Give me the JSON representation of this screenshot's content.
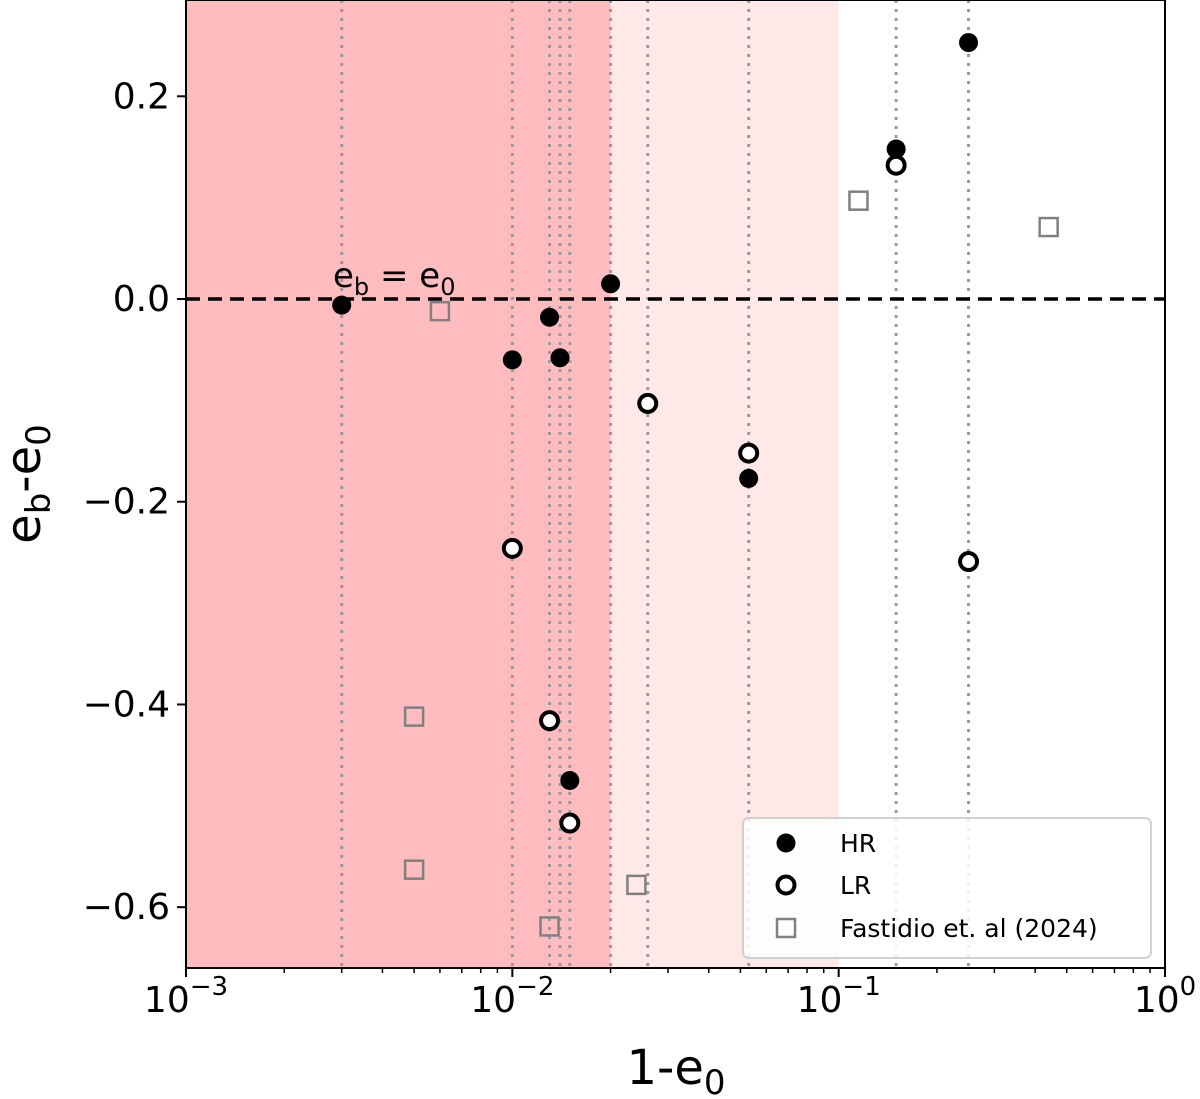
{
  "chart_data": {
    "type": "scatter",
    "xscale": "log",
    "xlim": [
      0.001,
      1
    ],
    "ylim": [
      -0.66,
      0.295
    ],
    "xlabel": "1-e",
    "xlabel_sub": "0",
    "ylabel_parts": [
      "e",
      "b",
      "-e",
      "0"
    ],
    "xticks": [
      {
        "value": 0.001,
        "base": "10",
        "exp": "−3"
      },
      {
        "value": 0.01,
        "base": "10",
        "exp": "−2"
      },
      {
        "value": 0.1,
        "base": "10",
        "exp": "−1"
      },
      {
        "value": 1,
        "base": "10",
        "exp": "0"
      }
    ],
    "yticks": [
      {
        "value": 0.2,
        "label": "0.2"
      },
      {
        "value": 0.0,
        "label": "0.0"
      },
      {
        "value": -0.2,
        "label": "−0.2"
      },
      {
        "value": -0.4,
        "label": "−0.4"
      },
      {
        "value": -0.6,
        "label": "−0.6"
      }
    ],
    "shaded_regions": [
      {
        "x0": 0.001,
        "x1": 0.02,
        "color": "#ffbcbf"
      },
      {
        "x0": 0.02,
        "x1": 0.1,
        "color": "#ffe8e8"
      }
    ],
    "vertical_lines": [
      0.003,
      0.01,
      0.013,
      0.014,
      0.015,
      0.02,
      0.026,
      0.053,
      0.15,
      0.25
    ],
    "reference_line": {
      "y": 0,
      "label_parts": [
        "e",
        "b",
        " = e",
        "0"
      ]
    },
    "series": [
      {
        "name": "HR",
        "marker": "filled-circle",
        "points": [
          {
            "x": 0.003,
            "y": -0.006
          },
          {
            "x": 0.01,
            "y": -0.06
          },
          {
            "x": 0.013,
            "y": -0.018
          },
          {
            "x": 0.014,
            "y": -0.058
          },
          {
            "x": 0.015,
            "y": -0.475
          },
          {
            "x": 0.02,
            "y": 0.015
          },
          {
            "x": 0.053,
            "y": -0.177
          },
          {
            "x": 0.15,
            "y": 0.148
          },
          {
            "x": 0.25,
            "y": 0.253
          }
        ]
      },
      {
        "name": "LR",
        "marker": "open-circle",
        "points": [
          {
            "x": 0.01,
            "y": -0.246
          },
          {
            "x": 0.013,
            "y": -0.416
          },
          {
            "x": 0.015,
            "y": -0.517
          },
          {
            "x": 0.026,
            "y": -0.103
          },
          {
            "x": 0.053,
            "y": -0.152
          },
          {
            "x": 0.15,
            "y": 0.132
          },
          {
            "x": 0.25,
            "y": -0.259
          }
        ]
      },
      {
        "name": "Fastidio et. al (2024)",
        "marker": "open-square",
        "points": [
          {
            "x": 0.005,
            "y": -0.412
          },
          {
            "x": 0.005,
            "y": -0.563
          },
          {
            "x": 0.006,
            "y": -0.012
          },
          {
            "x": 0.013,
            "y": -0.619
          },
          {
            "x": 0.024,
            "y": -0.578
          },
          {
            "x": 0.115,
            "y": 0.097
          },
          {
            "x": 0.44,
            "y": 0.071
          }
        ]
      }
    ],
    "legend_position": "bottom-right"
  }
}
